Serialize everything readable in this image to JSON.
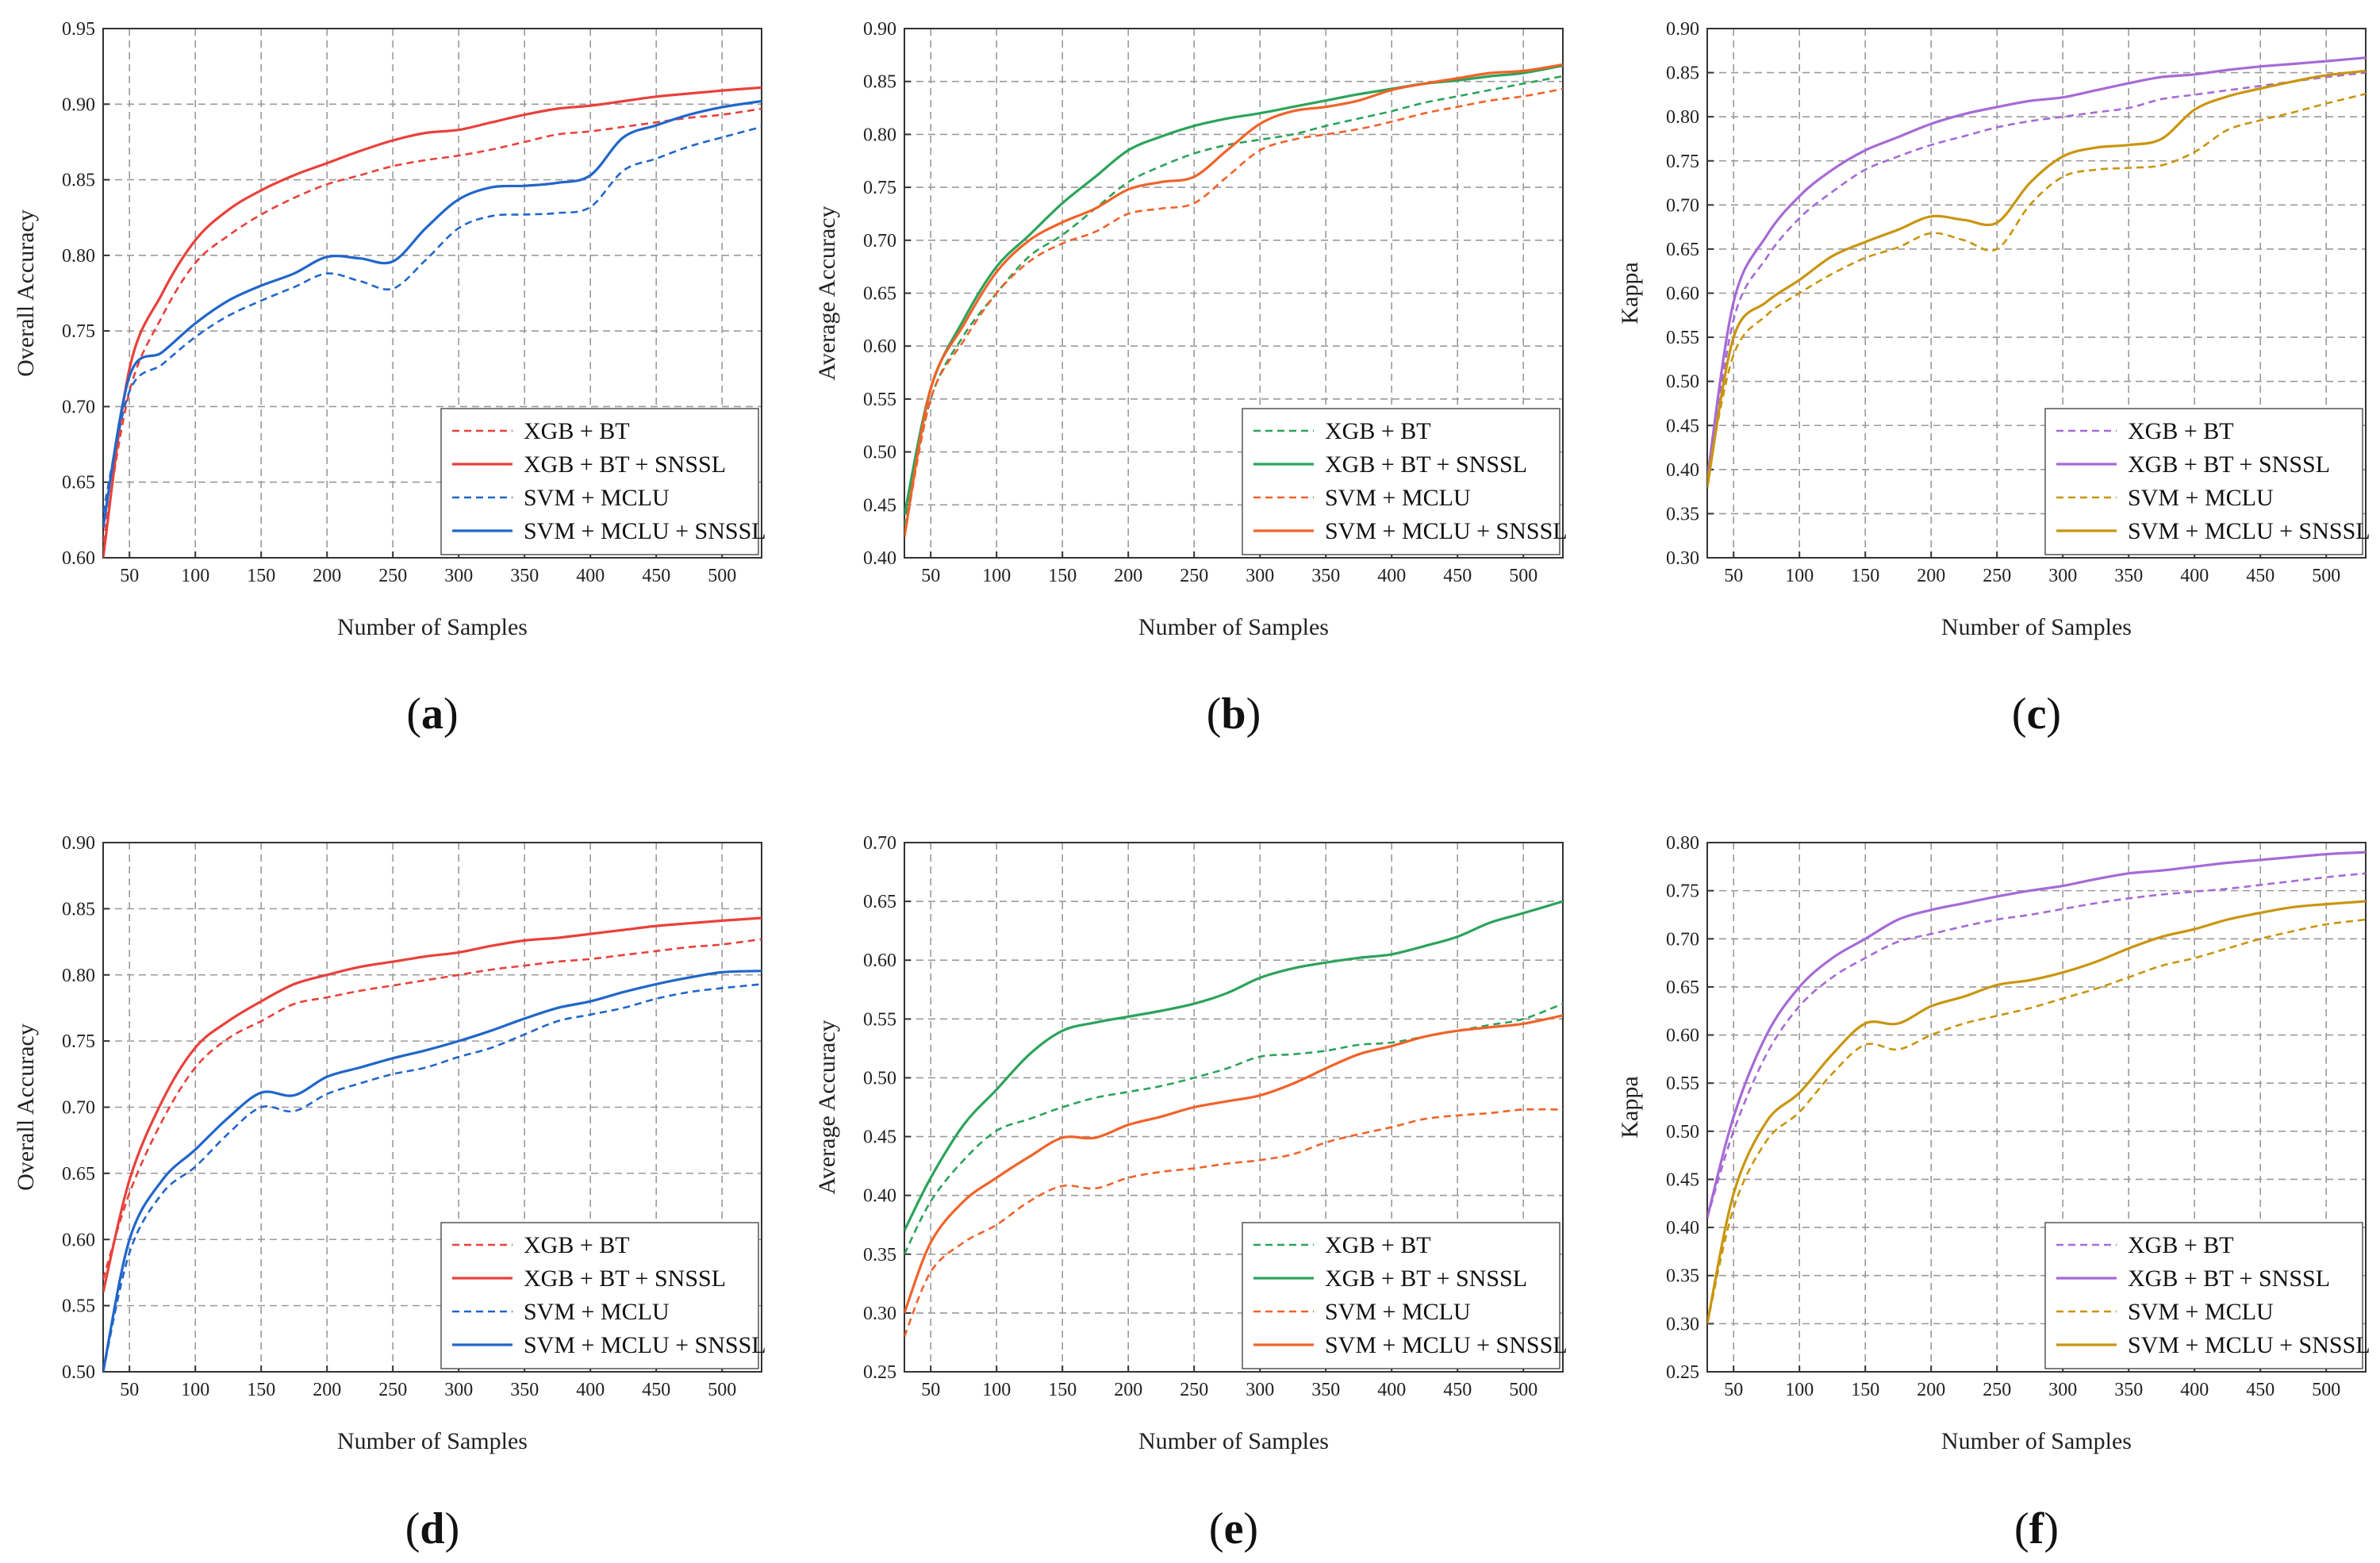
{
  "figure": {
    "xlabel": "Number of Samples",
    "x_ticks": [
      50,
      100,
      150,
      200,
      250,
      300,
      350,
      400,
      450,
      500
    ]
  },
  "legend_labels_a": [
    "XGB + BT",
    "XGB + BT + SNSSL",
    "SVM + MCLU",
    "SVM + MCLU + SNSSL"
  ],
  "chart_data": [
    {
      "panel": "a",
      "type": "line",
      "xlabel": "Number of Samples",
      "ylabel": "Overall Accuracy",
      "xlim": [
        30,
        530
      ],
      "ylim": [
        0.6,
        0.95
      ],
      "yticks": [
        0.6,
        0.65,
        0.7,
        0.75,
        0.8,
        0.85,
        0.9,
        0.95
      ],
      "legend_position": "bottom-right",
      "x": [
        30,
        50,
        75,
        100,
        125,
        150,
        175,
        200,
        225,
        250,
        275,
        300,
        325,
        350,
        375,
        400,
        425,
        450,
        475,
        500,
        530
      ],
      "series": [
        {
          "name": "XGB + BT",
          "color": "#e8413b",
          "dash": true,
          "values": [
            0.61,
            0.71,
            0.76,
            0.795,
            0.813,
            0.827,
            0.838,
            0.847,
            0.853,
            0.859,
            0.863,
            0.866,
            0.87,
            0.875,
            0.88,
            0.882,
            0.885,
            0.888,
            0.891,
            0.893,
            0.897
          ]
        },
        {
          "name": "XGB + BT + SNSSL",
          "color": "#e8413b",
          "dash": false,
          "values": [
            0.6,
            0.725,
            0.775,
            0.81,
            0.83,
            0.843,
            0.853,
            0.861,
            0.869,
            0.876,
            0.881,
            0.883,
            0.888,
            0.893,
            0.897,
            0.899,
            0.902,
            0.905,
            0.907,
            0.909,
            0.911
          ]
        },
        {
          "name": "SVM + MCLU",
          "color": "#2166c9",
          "dash": true,
          "values": [
            0.63,
            0.71,
            0.728,
            0.746,
            0.76,
            0.77,
            0.779,
            0.788,
            0.783,
            0.778,
            0.797,
            0.818,
            0.826,
            0.827,
            0.828,
            0.832,
            0.856,
            0.864,
            0.872,
            0.878,
            0.885
          ]
        },
        {
          "name": "SVM + MCLU + SNSSL",
          "color": "#2166c9",
          "dash": false,
          "values": [
            0.62,
            0.72,
            0.736,
            0.755,
            0.77,
            0.78,
            0.788,
            0.799,
            0.798,
            0.796,
            0.818,
            0.837,
            0.845,
            0.846,
            0.848,
            0.853,
            0.878,
            0.886,
            0.893,
            0.898,
            0.902
          ]
        }
      ]
    },
    {
      "panel": "b",
      "type": "line",
      "xlabel": "Number of Samples",
      "ylabel": "Average Accuracy",
      "xlim": [
        30,
        530
      ],
      "ylim": [
        0.4,
        0.9
      ],
      "yticks": [
        0.4,
        0.45,
        0.5,
        0.55,
        0.6,
        0.65,
        0.7,
        0.75,
        0.8,
        0.85,
        0.9
      ],
      "legend_position": "bottom-right",
      "x": [
        30,
        50,
        75,
        100,
        125,
        150,
        175,
        200,
        225,
        250,
        275,
        300,
        325,
        350,
        375,
        400,
        425,
        450,
        475,
        500,
        530
      ],
      "series": [
        {
          "name": "XGB + BT",
          "color": "#2ca35a",
          "dash": true,
          "values": [
            0.43,
            0.55,
            0.61,
            0.65,
            0.685,
            0.705,
            0.73,
            0.755,
            0.77,
            0.782,
            0.79,
            0.795,
            0.8,
            0.808,
            0.815,
            0.822,
            0.83,
            0.836,
            0.842,
            0.848,
            0.855
          ]
        },
        {
          "name": "XGB + BT + SNSSL",
          "color": "#2ca35a",
          "dash": false,
          "values": [
            0.44,
            0.56,
            0.625,
            0.675,
            0.705,
            0.735,
            0.76,
            0.785,
            0.798,
            0.808,
            0.815,
            0.82,
            0.826,
            0.832,
            0.838,
            0.843,
            0.848,
            0.851,
            0.855,
            0.858,
            0.865
          ]
        },
        {
          "name": "SVM + MCLU",
          "color": "#f0632a",
          "dash": true,
          "values": [
            0.42,
            0.55,
            0.605,
            0.65,
            0.68,
            0.697,
            0.708,
            0.725,
            0.73,
            0.735,
            0.76,
            0.785,
            0.795,
            0.8,
            0.805,
            0.812,
            0.82,
            0.826,
            0.832,
            0.836,
            0.843
          ]
        },
        {
          "name": "SVM + MCLU + SNSSL",
          "color": "#f0632a",
          "dash": false,
          "values": [
            0.42,
            0.56,
            0.62,
            0.67,
            0.7,
            0.717,
            0.73,
            0.748,
            0.755,
            0.76,
            0.785,
            0.81,
            0.822,
            0.826,
            0.832,
            0.842,
            0.848,
            0.853,
            0.858,
            0.86,
            0.866
          ]
        }
      ]
    },
    {
      "panel": "c",
      "type": "line",
      "xlabel": "Number of Samples",
      "ylabel": "Kappa",
      "xlim": [
        30,
        530
      ],
      "ylim": [
        0.3,
        0.9
      ],
      "yticks": [
        0.3,
        0.35,
        0.4,
        0.45,
        0.5,
        0.55,
        0.6,
        0.65,
        0.7,
        0.75,
        0.8,
        0.85,
        0.9
      ],
      "legend_position": "bottom-right",
      "x": [
        30,
        50,
        75,
        100,
        125,
        150,
        175,
        200,
        225,
        250,
        275,
        300,
        325,
        350,
        375,
        400,
        425,
        450,
        475,
        500,
        530
      ],
      "series": [
        {
          "name": "XGB + BT",
          "color": "#a66ad6",
          "dash": true,
          "values": [
            0.38,
            0.57,
            0.64,
            0.685,
            0.715,
            0.74,
            0.755,
            0.768,
            0.778,
            0.788,
            0.795,
            0.8,
            0.805,
            0.81,
            0.82,
            0.825,
            0.83,
            0.835,
            0.84,
            0.845,
            0.85
          ]
        },
        {
          "name": "XGB + BT + SNSSL",
          "color": "#a66ad6",
          "dash": false,
          "values": [
            0.39,
            0.59,
            0.665,
            0.71,
            0.74,
            0.762,
            0.777,
            0.792,
            0.803,
            0.811,
            0.818,
            0.822,
            0.83,
            0.838,
            0.845,
            0.848,
            0.853,
            0.857,
            0.86,
            0.863,
            0.867
          ]
        },
        {
          "name": "SVM + MCLU",
          "color": "#c9950e",
          "dash": true,
          "values": [
            0.39,
            0.53,
            0.575,
            0.6,
            0.622,
            0.64,
            0.652,
            0.668,
            0.66,
            0.65,
            0.7,
            0.732,
            0.74,
            0.742,
            0.745,
            0.76,
            0.785,
            0.796,
            0.805,
            0.815,
            0.826
          ]
        },
        {
          "name": "SVM + MCLU + SNSSL",
          "color": "#c9950e",
          "dash": false,
          "values": [
            0.38,
            0.55,
            0.59,
            0.615,
            0.642,
            0.658,
            0.672,
            0.687,
            0.683,
            0.68,
            0.725,
            0.755,
            0.765,
            0.768,
            0.775,
            0.808,
            0.823,
            0.832,
            0.84,
            0.847,
            0.852
          ]
        }
      ]
    },
    {
      "panel": "d",
      "type": "line",
      "xlabel": "Number of Samples",
      "ylabel": "Overall Accuracy",
      "xlim": [
        30,
        530
      ],
      "ylim": [
        0.5,
        0.9
      ],
      "yticks": [
        0.5,
        0.55,
        0.6,
        0.65,
        0.7,
        0.75,
        0.8,
        0.85,
        0.9
      ],
      "legend_position": "bottom-right",
      "x": [
        30,
        50,
        75,
        100,
        125,
        150,
        175,
        200,
        225,
        250,
        275,
        300,
        325,
        350,
        375,
        400,
        425,
        450,
        475,
        500,
        530
      ],
      "series": [
        {
          "name": "XGB + BT",
          "color": "#e8413b",
          "dash": true,
          "values": [
            0.57,
            0.635,
            0.69,
            0.73,
            0.752,
            0.765,
            0.778,
            0.783,
            0.788,
            0.792,
            0.796,
            0.8,
            0.804,
            0.807,
            0.81,
            0.812,
            0.815,
            0.818,
            0.821,
            0.823,
            0.827
          ]
        },
        {
          "name": "XGB + BT + SNSSL",
          "color": "#e8413b",
          "dash": false,
          "values": [
            0.56,
            0.645,
            0.705,
            0.745,
            0.765,
            0.78,
            0.793,
            0.8,
            0.806,
            0.81,
            0.814,
            0.817,
            0.822,
            0.826,
            0.828,
            0.831,
            0.834,
            0.837,
            0.839,
            0.841,
            0.843
          ]
        },
        {
          "name": "SVM + MCLU",
          "color": "#2166c9",
          "dash": true,
          "values": [
            0.5,
            0.59,
            0.635,
            0.655,
            0.68,
            0.7,
            0.697,
            0.71,
            0.718,
            0.725,
            0.73,
            0.738,
            0.745,
            0.755,
            0.765,
            0.77,
            0.775,
            0.782,
            0.787,
            0.79,
            0.793
          ]
        },
        {
          "name": "SVM + MCLU + SNSSL",
          "color": "#2166c9",
          "dash": false,
          "values": [
            0.5,
            0.6,
            0.645,
            0.668,
            0.692,
            0.711,
            0.709,
            0.723,
            0.73,
            0.737,
            0.743,
            0.75,
            0.758,
            0.767,
            0.775,
            0.78,
            0.787,
            0.793,
            0.798,
            0.802,
            0.803
          ]
        }
      ]
    },
    {
      "panel": "e",
      "type": "line",
      "xlabel": "Number of Samples",
      "ylabel": "Average Accuracy",
      "xlim": [
        30,
        530
      ],
      "ylim": [
        0.25,
        0.7
      ],
      "yticks": [
        0.25,
        0.3,
        0.35,
        0.4,
        0.45,
        0.5,
        0.55,
        0.6,
        0.65,
        0.7
      ],
      "legend_position": "bottom-right",
      "x": [
        30,
        50,
        75,
        100,
        125,
        150,
        175,
        200,
        225,
        250,
        275,
        300,
        325,
        350,
        375,
        400,
        425,
        450,
        475,
        500,
        530
      ],
      "series": [
        {
          "name": "XGB + BT",
          "color": "#2ca35a",
          "dash": true,
          "values": [
            0.35,
            0.395,
            0.43,
            0.455,
            0.465,
            0.475,
            0.483,
            0.488,
            0.493,
            0.5,
            0.508,
            0.518,
            0.52,
            0.523,
            0.528,
            0.53,
            0.535,
            0.54,
            0.545,
            0.55,
            0.563
          ]
        },
        {
          "name": "XGB + BT + SNSSL",
          "color": "#2ca35a",
          "dash": false,
          "values": [
            0.37,
            0.415,
            0.46,
            0.49,
            0.52,
            0.54,
            0.547,
            0.552,
            0.557,
            0.563,
            0.572,
            0.585,
            0.593,
            0.598,
            0.602,
            0.605,
            0.612,
            0.62,
            0.632,
            0.64,
            0.65
          ]
        },
        {
          "name": "SVM + MCLU",
          "color": "#f0632a",
          "dash": true,
          "values": [
            0.28,
            0.335,
            0.36,
            0.375,
            0.395,
            0.408,
            0.406,
            0.415,
            0.42,
            0.423,
            0.427,
            0.43,
            0.435,
            0.445,
            0.452,
            0.458,
            0.465,
            0.468,
            0.47,
            0.473,
            0.473
          ]
        },
        {
          "name": "SVM + MCLU + SNSSL",
          "color": "#f0632a",
          "dash": false,
          "values": [
            0.3,
            0.36,
            0.395,
            0.415,
            0.433,
            0.449,
            0.449,
            0.46,
            0.467,
            0.475,
            0.48,
            0.485,
            0.495,
            0.508,
            0.52,
            0.527,
            0.535,
            0.54,
            0.543,
            0.546,
            0.553
          ]
        }
      ]
    },
    {
      "panel": "f",
      "type": "line",
      "xlabel": "Number of Samples",
      "ylabel": "Kappa",
      "xlim": [
        30,
        530
      ],
      "ylim": [
        0.25,
        0.8
      ],
      "yticks": [
        0.25,
        0.3,
        0.35,
        0.4,
        0.45,
        0.5,
        0.55,
        0.6,
        0.65,
        0.7,
        0.75,
        0.8
      ],
      "legend_position": "bottom-right",
      "x": [
        30,
        50,
        75,
        100,
        125,
        150,
        175,
        200,
        225,
        250,
        275,
        300,
        325,
        350,
        375,
        400,
        425,
        450,
        475,
        500,
        530
      ],
      "series": [
        {
          "name": "XGB + BT",
          "color": "#a66ad6",
          "dash": true,
          "values": [
            0.41,
            0.5,
            0.58,
            0.63,
            0.66,
            0.68,
            0.697,
            0.705,
            0.713,
            0.72,
            0.725,
            0.731,
            0.737,
            0.742,
            0.746,
            0.749,
            0.752,
            0.756,
            0.76,
            0.764,
            0.768
          ]
        },
        {
          "name": "XGB + BT + SNSSL",
          "color": "#a66ad6",
          "dash": false,
          "values": [
            0.41,
            0.515,
            0.6,
            0.65,
            0.68,
            0.7,
            0.72,
            0.73,
            0.737,
            0.744,
            0.75,
            0.755,
            0.762,
            0.768,
            0.771,
            0.775,
            0.779,
            0.782,
            0.785,
            0.788,
            0.79
          ]
        },
        {
          "name": "SVM + MCLU",
          "color": "#c9950e",
          "dash": true,
          "values": [
            0.3,
            0.42,
            0.49,
            0.52,
            0.56,
            0.59,
            0.585,
            0.6,
            0.612,
            0.62,
            0.628,
            0.638,
            0.648,
            0.66,
            0.672,
            0.68,
            0.69,
            0.7,
            0.708,
            0.715,
            0.72
          ]
        },
        {
          "name": "SVM + MCLU + SNSSL",
          "color": "#c9950e",
          "dash": false,
          "values": [
            0.3,
            0.435,
            0.51,
            0.54,
            0.58,
            0.612,
            0.612,
            0.63,
            0.64,
            0.652,
            0.657,
            0.665,
            0.676,
            0.69,
            0.702,
            0.71,
            0.72,
            0.727,
            0.733,
            0.736,
            0.739
          ]
        }
      ]
    }
  ]
}
